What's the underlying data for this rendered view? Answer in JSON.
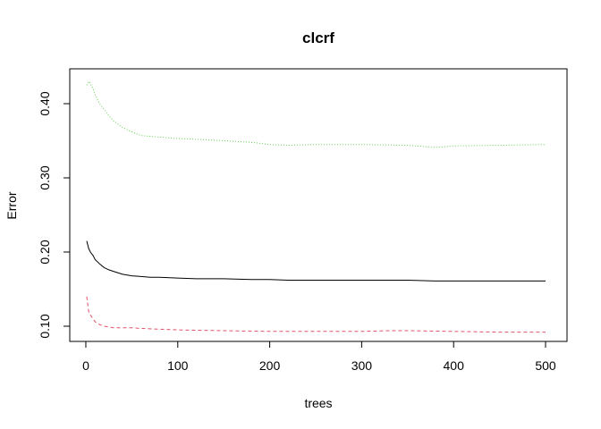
{
  "chart_data": {
    "type": "line",
    "title": "clcrf",
    "xlabel": "trees",
    "ylabel": "Error",
    "xlim": [
      1,
      500
    ],
    "ylim": [
      0.083,
      0.44
    ],
    "x_ticks": [
      0,
      100,
      200,
      300,
      400,
      500
    ],
    "y_ticks": [
      0.1,
      0.2,
      0.3,
      0.4
    ],
    "x_tick_labels": [
      "0",
      "100",
      "200",
      "300",
      "400",
      "500"
    ],
    "y_tick_labels": [
      "0.10",
      "0.20",
      "0.30",
      "0.40"
    ],
    "grid": false,
    "series": [
      {
        "color": "#000000",
        "dash": "solid",
        "x": [
          1,
          3,
          5,
          8,
          10,
          15,
          20,
          25,
          30,
          40,
          50,
          60,
          70,
          80,
          100,
          120,
          150,
          180,
          200,
          220,
          250,
          280,
          300,
          330,
          350,
          380,
          400,
          430,
          450,
          480,
          500
        ],
        "y": [
          0.215,
          0.205,
          0.2,
          0.195,
          0.19,
          0.184,
          0.179,
          0.176,
          0.174,
          0.17,
          0.168,
          0.167,
          0.166,
          0.166,
          0.165,
          0.164,
          0.164,
          0.163,
          0.163,
          0.162,
          0.162,
          0.162,
          0.162,
          0.162,
          0.162,
          0.161,
          0.161,
          0.161,
          0.161,
          0.161,
          0.161
        ]
      },
      {
        "color": "#df536b",
        "dash": "dashed",
        "x": [
          1,
          3,
          5,
          8,
          10,
          15,
          20,
          25,
          30,
          40,
          50,
          60,
          80,
          100,
          150,
          200,
          250,
          300,
          330,
          350,
          400,
          450,
          500
        ],
        "y": [
          0.14,
          0.12,
          0.115,
          0.11,
          0.106,
          0.102,
          0.1,
          0.099,
          0.098,
          0.098,
          0.098,
          0.097,
          0.096,
          0.095,
          0.094,
          0.093,
          0.093,
          0.093,
          0.094,
          0.094,
          0.093,
          0.092,
          0.092
        ]
      },
      {
        "color": "#61d04f",
        "dash": "dotted",
        "x": [
          1,
          3,
          5,
          8,
          10,
          15,
          20,
          25,
          30,
          40,
          50,
          60,
          70,
          80,
          100,
          120,
          150,
          180,
          200,
          220,
          250,
          300,
          350,
          380,
          400,
          450,
          500
        ],
        "y": [
          0.425,
          0.43,
          0.427,
          0.42,
          0.412,
          0.4,
          0.392,
          0.384,
          0.377,
          0.368,
          0.362,
          0.357,
          0.356,
          0.355,
          0.353,
          0.352,
          0.35,
          0.348,
          0.345,
          0.344,
          0.345,
          0.345,
          0.344,
          0.341,
          0.343,
          0.344,
          0.345
        ]
      }
    ]
  }
}
